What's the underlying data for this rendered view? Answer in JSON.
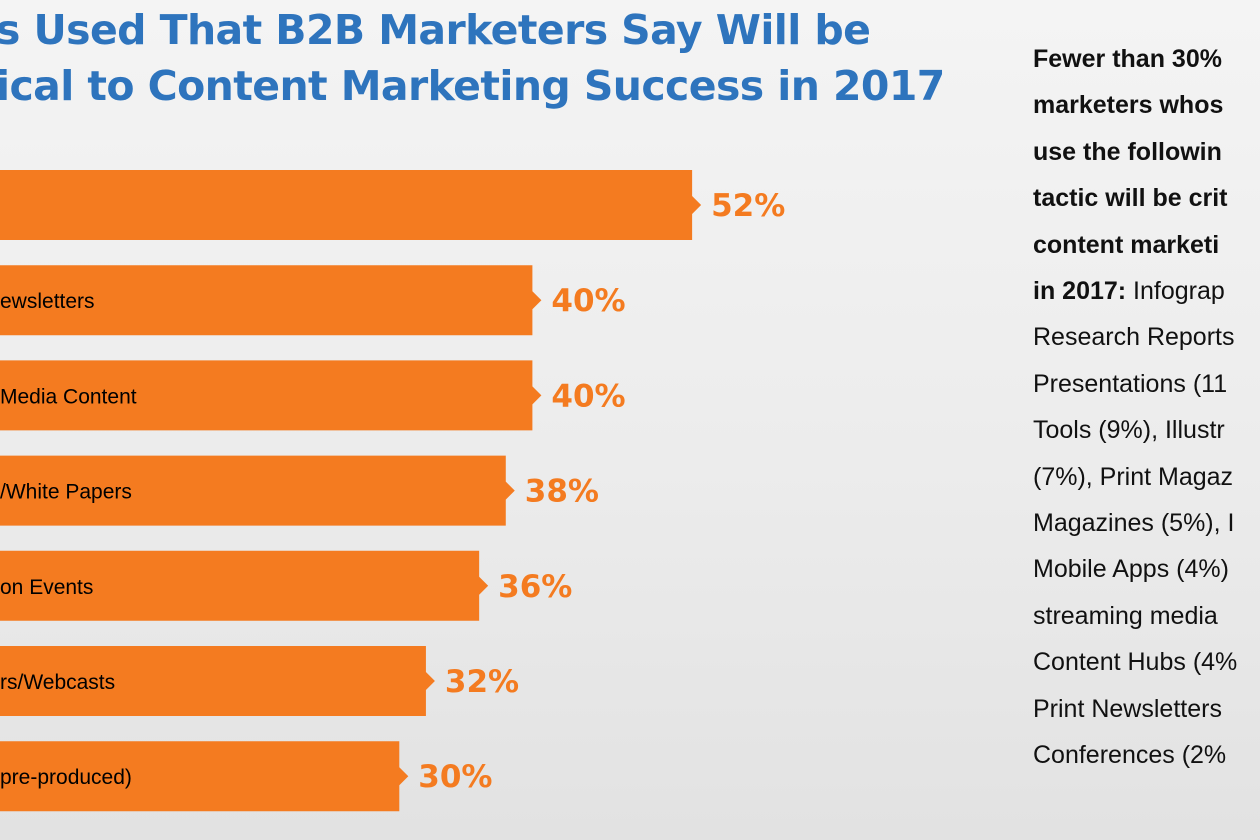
{
  "title": {
    "line1": "s Used That B2B Marketers Say Will be",
    "line2": "ical to Content Marketing Success in 2017"
  },
  "colors": {
    "title": "#2e74bd",
    "bar": "#f47b20",
    "value_text": "#f47b20",
    "background": "#ededed"
  },
  "chart_data": {
    "type": "bar",
    "orientation": "horizontal",
    "categories": [
      "",
      "ewsletters",
      "Media Content",
      "/White Papers",
      "on Events",
      "rs/Webcasts",
      "pre-produced)"
    ],
    "values": [
      52,
      40,
      40,
      38,
      36,
      32,
      30
    ],
    "value_labels": [
      "52%",
      "40%",
      "40%",
      "38%",
      "36%",
      "32%",
      "30%"
    ],
    "unit": "%",
    "xlim": [
      0,
      60
    ],
    "grid": false,
    "legend": "none"
  },
  "sidebar": {
    "lines": [
      {
        "bold": "Fewer than 30%",
        "normal": ""
      },
      {
        "bold": "marketers whos",
        "normal": ""
      },
      {
        "bold": "use the followin",
        "normal": ""
      },
      {
        "bold": "tactic will be crit",
        "normal": ""
      },
      {
        "bold": "content marketi",
        "normal": ""
      },
      {
        "bold": "in 2017:",
        "normal": " Infograp"
      },
      {
        "bold": "",
        "normal": "Research Reports"
      },
      {
        "bold": "",
        "normal": "Presentations (11"
      },
      {
        "bold": "",
        "normal": "Tools (9%), Illustr"
      },
      {
        "bold": "",
        "normal": "(7%), Print Magaz"
      },
      {
        "bold": "",
        "normal": "Magazines (5%), I"
      },
      {
        "bold": "",
        "normal": "Mobile Apps (4%)"
      },
      {
        "bold": "",
        "normal": "streaming media"
      },
      {
        "bold": "",
        "normal": "Content Hubs (4%"
      },
      {
        "bold": "",
        "normal": "Print Newsletters"
      },
      {
        "bold": "",
        "normal": "Conferences (2%"
      }
    ]
  }
}
